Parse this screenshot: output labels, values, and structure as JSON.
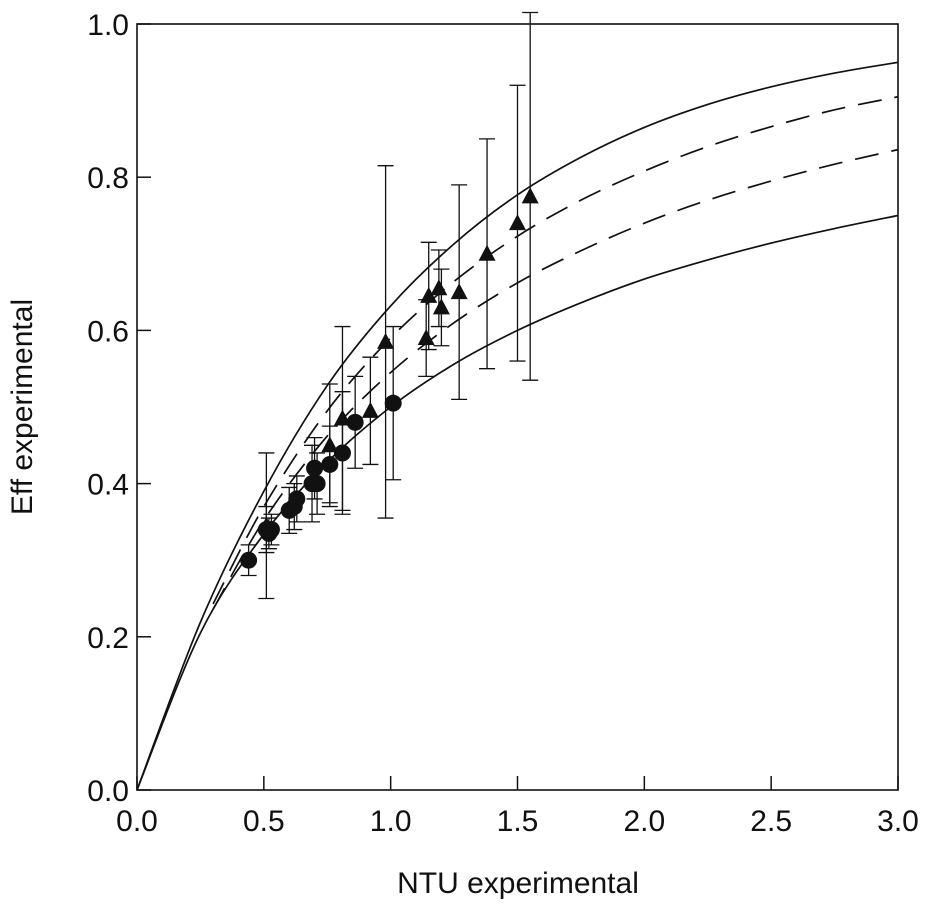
{
  "chart_data": {
    "type": "scatter",
    "title": "",
    "xlabel": "NTU experimental",
    "ylabel": "Eff experimental",
    "xlim": [
      0,
      3
    ],
    "ylim": [
      0,
      1
    ],
    "x_ticks": [
      "0.0",
      "0.5",
      "1.0",
      "1.5",
      "2.0",
      "2.5",
      "3.0"
    ],
    "y_ticks": [
      "0.0",
      "0.2",
      "0.4",
      "0.6",
      "0.8",
      "1.0"
    ],
    "grid": false,
    "legend": "none",
    "curves": [
      {
        "style": "solid",
        "points": [
          [
            0,
            0
          ],
          [
            0.25,
            0.219
          ],
          [
            0.5,
            0.39
          ],
          [
            0.75,
            0.528
          ],
          [
            1.0,
            0.632
          ],
          [
            1.25,
            0.713
          ],
          [
            1.5,
            0.777
          ],
          [
            1.75,
            0.826
          ],
          [
            2.0,
            0.865
          ],
          [
            2.25,
            0.895
          ],
          [
            2.5,
            0.918
          ],
          [
            2.75,
            0.936
          ],
          [
            3.0,
            0.95
          ]
        ]
      },
      {
        "style": "dashed",
        "points": [
          [
            0.3,
            0.243
          ],
          [
            0.5,
            0.37
          ],
          [
            0.75,
            0.495
          ],
          [
            1.0,
            0.59
          ],
          [
            1.25,
            0.664
          ],
          [
            1.5,
            0.723
          ],
          [
            1.75,
            0.77
          ],
          [
            2.0,
            0.808
          ],
          [
            2.25,
            0.84
          ],
          [
            2.5,
            0.866
          ],
          [
            2.75,
            0.888
          ],
          [
            3.0,
            0.905
          ]
        ]
      },
      {
        "style": "dashed",
        "points": [
          [
            0.3,
            0.236
          ],
          [
            0.5,
            0.352
          ],
          [
            0.75,
            0.462
          ],
          [
            1.0,
            0.545
          ],
          [
            1.25,
            0.61
          ],
          [
            1.5,
            0.662
          ],
          [
            1.75,
            0.704
          ],
          [
            2.0,
            0.74
          ],
          [
            2.25,
            0.77
          ],
          [
            2.5,
            0.795
          ],
          [
            2.75,
            0.817
          ],
          [
            3.0,
            0.836
          ]
        ]
      },
      {
        "style": "solid",
        "points": [
          [
            0,
            0
          ],
          [
            0.25,
            0.205
          ],
          [
            0.5,
            0.334
          ],
          [
            0.75,
            0.428
          ],
          [
            1.0,
            0.5
          ],
          [
            1.25,
            0.556
          ],
          [
            1.5,
            0.6
          ],
          [
            1.75,
            0.636
          ],
          [
            2.0,
            0.667
          ],
          [
            2.25,
            0.692
          ],
          [
            2.5,
            0.714
          ],
          [
            2.75,
            0.733
          ],
          [
            3.0,
            0.75
          ]
        ]
      }
    ],
    "series": [
      {
        "marker": "circle",
        "points": [
          {
            "x": 0.44,
            "y": 0.3,
            "err": 0.02
          },
          {
            "x": 0.51,
            "y": 0.34,
            "err": 0.03
          },
          {
            "x": 0.52,
            "y": 0.335,
            "err": 0.02
          },
          {
            "x": 0.53,
            "y": 0.34,
            "err": 0.02
          },
          {
            "x": 0.6,
            "y": 0.365,
            "err": 0.03
          },
          {
            "x": 0.62,
            "y": 0.37,
            "err": 0.03
          },
          {
            "x": 0.63,
            "y": 0.38,
            "err": 0.03
          },
          {
            "x": 0.69,
            "y": 0.4,
            "err": 0.05
          },
          {
            "x": 0.7,
            "y": 0.42,
            "err": 0.04
          },
          {
            "x": 0.71,
            "y": 0.4,
            "err": 0.04
          },
          {
            "x": 0.76,
            "y": 0.425,
            "err": 0.05
          },
          {
            "x": 0.81,
            "y": 0.44,
            "err": 0.08
          },
          {
            "x": 0.86,
            "y": 0.48,
            "err": 0.06
          },
          {
            "x": 1.01,
            "y": 0.505,
            "err": 0.1
          }
        ]
      },
      {
        "marker": "triangle",
        "points": [
          {
            "x": 0.51,
            "y": 0.345,
            "err": 0.095
          },
          {
            "x": 0.76,
            "y": 0.45,
            "err": 0.08
          },
          {
            "x": 0.81,
            "y": 0.485,
            "err": 0.12
          },
          {
            "x": 0.92,
            "y": 0.495,
            "err": 0.07
          },
          {
            "x": 0.98,
            "y": 0.585,
            "err": 0.23
          },
          {
            "x": 1.14,
            "y": 0.59,
            "err": 0.05
          },
          {
            "x": 1.15,
            "y": 0.645,
            "err": 0.07
          },
          {
            "x": 1.19,
            "y": 0.655,
            "err": 0.05
          },
          {
            "x": 1.2,
            "y": 0.63,
            "err": 0.05
          },
          {
            "x": 1.27,
            "y": 0.65,
            "err": 0.14
          },
          {
            "x": 1.38,
            "y": 0.7,
            "err": 0.15
          },
          {
            "x": 1.5,
            "y": 0.74,
            "err": 0.18
          },
          {
            "x": 1.55,
            "y": 0.775,
            "err": 0.24
          }
        ]
      }
    ]
  }
}
